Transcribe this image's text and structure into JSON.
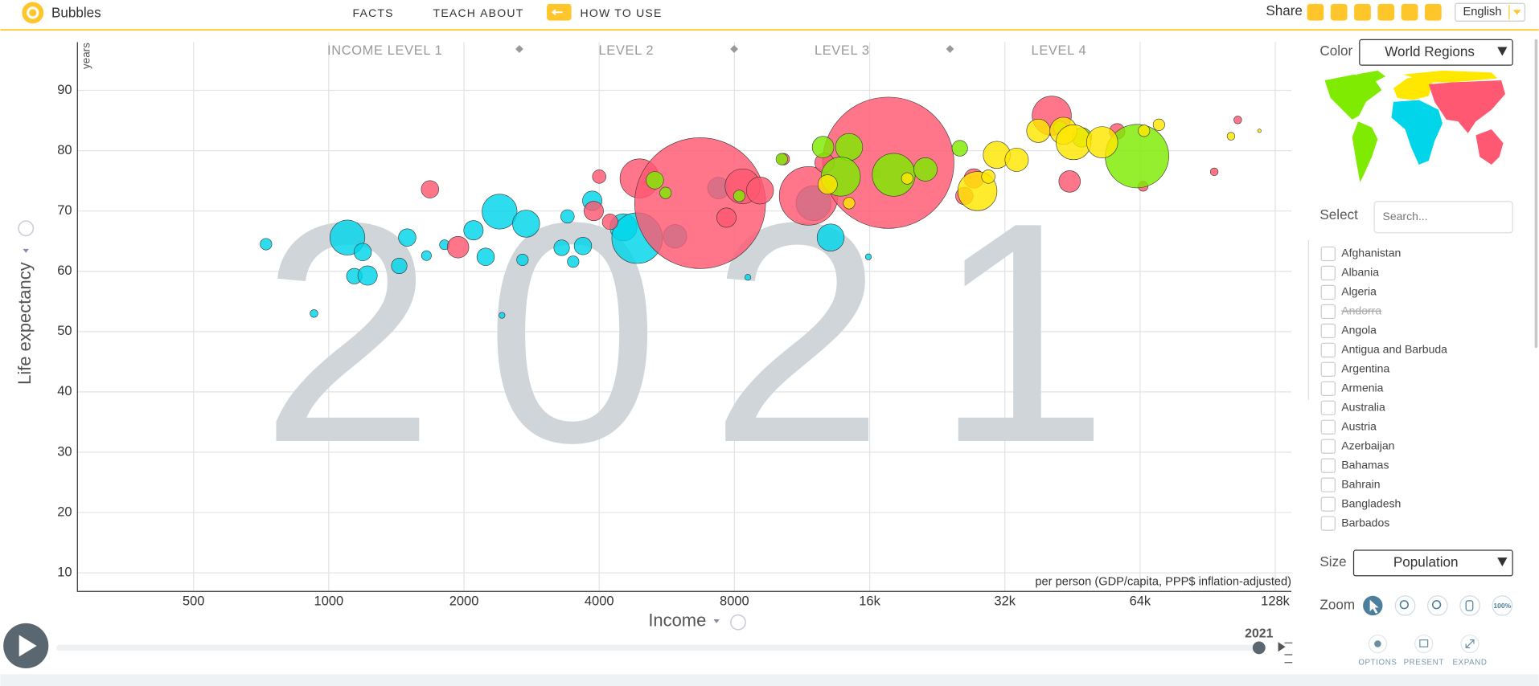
{
  "header": {
    "app": "Bubbles",
    "nav": [
      "FACTS",
      "TEACH",
      "ABOUT"
    ],
    "how_to": "HOW TO USE",
    "share": "Share",
    "language": "English"
  },
  "chart_data": {
    "type": "bubble",
    "x_scale": "log",
    "grid": true,
    "income_levels": [
      "INCOME LEVEL 1",
      "LEVEL 2",
      "LEVEL 3",
      "LEVEL 4"
    ],
    "y_unit": "years",
    "ylabel": "Life expectancy",
    "xlabel": "Income",
    "x_note": "per person (GDP/capita, PPP$ inflation-adjusted)",
    "year": 2021,
    "xlim": [
      275,
      139000
    ],
    "ylim": [
      7,
      98
    ],
    "xticks": [
      500,
      1000,
      2000,
      4000,
      8000,
      {
        "value": 16000,
        "label": "16k"
      },
      {
        "value": 32000,
        "label": "32k"
      },
      {
        "value": 64000,
        "label": "64k"
      },
      {
        "value": 128000,
        "label": "128k"
      }
    ],
    "yticks": [
      10,
      20,
      30,
      40,
      50,
      60,
      70,
      80,
      90
    ],
    "size_max": 1410,
    "series": [
      {
        "color": "#00d5e9",
        "x": [
          725,
          927,
          1100,
          1190,
          1140,
          1220,
          1435,
          1495,
          1650,
          1810,
          2100,
          2400,
          2235,
          2750,
          2700,
          2430,
          3400,
          3300,
          3500,
          3680,
          3860,
          4530,
          4860,
          5900,
          7370,
          12000,
          13100,
          15900,
          8570,
          16600
        ],
        "values": [
          64.5,
          53,
          65.6,
          63.2,
          59.2,
          59.3,
          60.9,
          65.6,
          62.6,
          64.4,
          66.8,
          69.9,
          62.4,
          67.9,
          61.9,
          52.7,
          69.1,
          63.9,
          61.6,
          64.2,
          71.7,
          67.3,
          65.5,
          65.8,
          73.8,
          71.3,
          65.6,
          62.4,
          59,
          76.2
        ],
        "sizes": [
          11,
          5,
          100,
          25,
          20,
          31,
          20,
          25,
          8,
          8,
          31,
          100,
          25,
          60,
          11,
          3,
          15,
          20,
          11,
          25,
          31,
          60,
          210,
          45,
          38,
          100,
          60,
          3,
          3,
          5
        ]
      },
      {
        "color": "#ff5872",
        "x": [
          1680,
          1940,
          4000,
          3890,
          4920,
          4230,
          6710,
          7680,
          8340,
          9120,
          11700,
          17600,
          12700,
          27300,
          26000,
          40700,
          44600,
          65000,
          93600,
          105600,
          56900,
          10300
        ],
        "values": [
          73.6,
          64,
          75.7,
          70,
          75.4,
          68.2,
          71.3,
          68.9,
          74.1,
          73.4,
          72.5,
          78,
          78,
          75.4,
          72.5,
          85.8,
          74.9,
          74.1,
          76.5,
          85.1,
          83.2,
          78.6
        ],
        "sizes": [
          25,
          38,
          15,
          31,
          125,
          20,
          1400,
          31,
          100,
          60,
          280,
          1410,
          31,
          31,
          25,
          125,
          38,
          8,
          5,
          5,
          20,
          11
        ]
      },
      {
        "color": "#7feb00",
        "x": [
          5320,
          5620,
          8200,
          10200,
          12600,
          14400,
          13800,
          18100,
          21300,
          25400,
          42500,
          47500,
          63000
        ],
        "values": [
          75.1,
          73,
          72.5,
          78.6,
          80.6,
          80.6,
          75.7,
          76,
          76.9,
          80.4,
          83.8,
          82.2,
          79.1
        ],
        "sizes": [
          25,
          11,
          11,
          11,
          38,
          60,
          125,
          150,
          45,
          20,
          15,
          31,
          330
        ]
      },
      {
        "color": "#ffe700",
        "x": [
          12900,
          27800,
          30700,
          34000,
          38000,
          43200,
          45500,
          52700,
          65300,
          70500,
          102000,
          118000,
          29400,
          19400,
          14400
        ],
        "values": [
          74.4,
          73.3,
          79.3,
          78.5,
          83.3,
          83.3,
          81.4,
          81.4,
          83.3,
          84.3,
          82.4,
          83.3,
          75.7,
          75.4,
          71.3
        ],
        "sizes": [
          31,
          125,
          60,
          45,
          45,
          60,
          100,
          80,
          11,
          11,
          5,
          1,
          15,
          11,
          11
        ]
      }
    ]
  },
  "sidebar": {
    "color_label": "Color",
    "color_choice": "World Regions",
    "select_label": "Select",
    "search_placeholder": "Search...",
    "countries": [
      {
        "name": "Afghanistan"
      },
      {
        "name": "Albania"
      },
      {
        "name": "Algeria"
      },
      {
        "name": "Andorra",
        "available": false
      },
      {
        "name": "Angola"
      },
      {
        "name": "Antigua and Barbuda"
      },
      {
        "name": "Argentina"
      },
      {
        "name": "Armenia"
      },
      {
        "name": "Australia"
      },
      {
        "name": "Austria"
      },
      {
        "name": "Azerbaijan"
      },
      {
        "name": "Bahamas"
      },
      {
        "name": "Bahrain"
      },
      {
        "name": "Bangladesh"
      },
      {
        "name": "Barbados"
      }
    ],
    "size_label": "Size",
    "size_choice": "Population",
    "zoom_label": "Zoom",
    "zoom_full": "100%",
    "buttons": [
      "OPTIONS",
      "PRESENT",
      "EXPAND"
    ]
  }
}
